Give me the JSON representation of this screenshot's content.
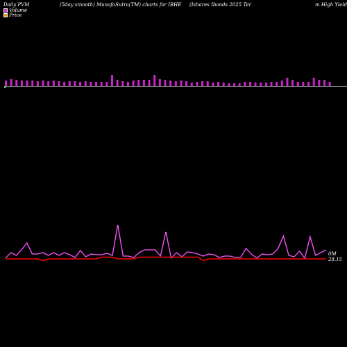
{
  "header": {
    "left": "Daily PVM",
    "center": "(5day smooth) MunafaSutra(TM) charts for IBHE",
    "right1": "(Ishares Ibonds 2025 Ter",
    "right2": "m High Yield Inc"
  },
  "legend": [
    {
      "label": "Volume",
      "color": "#cc33cc"
    },
    {
      "label": "Price",
      "color": "#ff9900"
    }
  ],
  "colors": {
    "volume_bar": "#cc22cc",
    "pvm_line": "#cc22cc",
    "price_line": "#ff0000",
    "baseline": "#888888",
    "first_bar": "#33cc33"
  },
  "chart_data": {
    "type": "bar+line",
    "volume_values": [
      8,
      10,
      9,
      8,
      8,
      8,
      7,
      8,
      7,
      8,
      7,
      6,
      7,
      7,
      6,
      7,
      6,
      6,
      6,
      6,
      16,
      9,
      7,
      6,
      8,
      9,
      9,
      9,
      16,
      10,
      9,
      8,
      7,
      8,
      7,
      5,
      6,
      7,
      7,
      5,
      6,
      5,
      4,
      4,
      4,
      6,
      6,
      5,
      5,
      5,
      6,
      6,
      8,
      12,
      9,
      6,
      6,
      6,
      12,
      9,
      9,
      6
    ],
    "pvm_values": [
      2,
      10,
      6,
      14,
      24,
      8,
      8,
      10,
      6,
      10,
      6,
      10,
      7,
      3,
      13,
      4,
      8,
      7,
      7,
      9,
      6,
      50,
      5,
      5,
      3,
      10,
      14,
      14,
      14,
      5,
      40,
      2,
      10,
      4,
      11,
      10,
      8,
      5,
      8,
      7,
      3,
      5,
      5,
      3,
      3,
      16,
      8,
      2,
      8,
      7,
      8,
      16,
      34,
      6,
      4,
      12,
      2,
      33,
      6,
      10,
      14
    ],
    "price_values": [
      28.2,
      28.2,
      28.2,
      28.2,
      28.2,
      28.2,
      28.2,
      28.1,
      28.2,
      28.2,
      28.2,
      28.2,
      28.2,
      28.2,
      28.2,
      28.2,
      28.2,
      28.2,
      28.3,
      28.3,
      28.3,
      28.2,
      28.2,
      28.2,
      28.2,
      28.3,
      28.3,
      28.3,
      28.3,
      28.3,
      28.3,
      28.3,
      28.3,
      28.3,
      28.3,
      28.3,
      28.3,
      28.1,
      28.2,
      28.2,
      28.2,
      28.2,
      28.2,
      28.2,
      28.2,
      28.2,
      28.2,
      28.2,
      28.2,
      28.2,
      28.2,
      28.2,
      28.2,
      28.2,
      28.2,
      28.2,
      28.2,
      28.2,
      28.2,
      28.2,
      28.2
    ],
    "volume_right_label": "0M",
    "price_right_label": "28.15"
  }
}
